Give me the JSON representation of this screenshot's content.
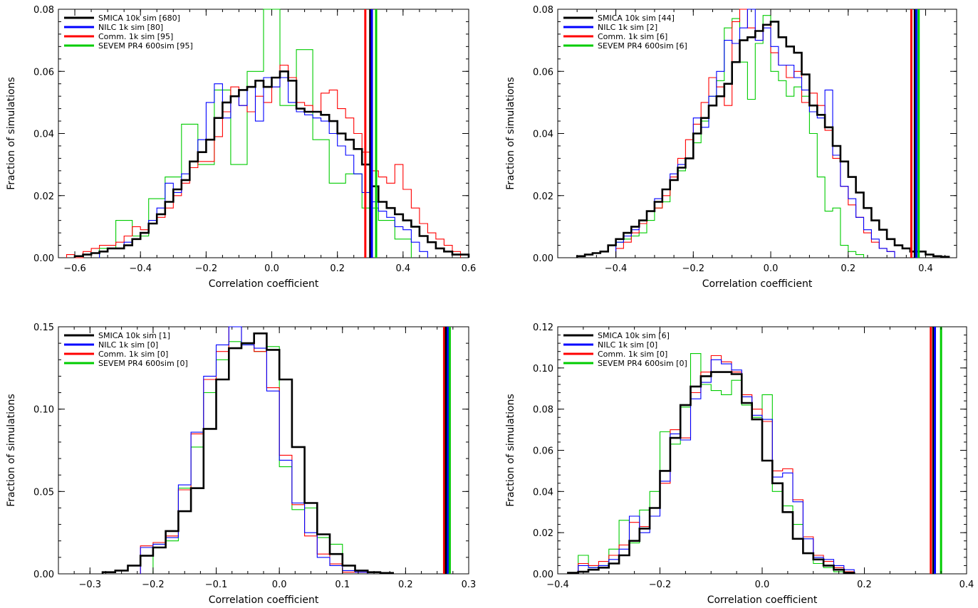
{
  "figure": {
    "colors": {
      "smica": "#000000",
      "nilc": "#0000ff",
      "comm": "#ff0000",
      "sevem": "#00cc00"
    }
  },
  "chart_data": [
    {
      "type": "histogram",
      "xlabel": "Correlation coefficient",
      "ylabel": "Fraction of simulations",
      "xlim": [
        -0.65,
        0.6
      ],
      "ylim": [
        0,
        0.08
      ],
      "xticks": [
        -0.6,
        -0.4,
        -0.2,
        0.0,
        0.2,
        0.4,
        0.6
      ],
      "xtick_labels": [
        "−0.6",
        "−0.4",
        "−0.2",
        "0.0",
        "0.2",
        "0.4",
        "0.6"
      ],
      "yticks": [
        0,
        0.02,
        0.04,
        0.06,
        0.08
      ],
      "ytick_labels": [
        "0.00",
        "0.02",
        "0.04",
        "0.06",
        "0.08"
      ],
      "legend_position": "top-left",
      "series": [
        {
          "key": "smica",
          "name": "SMICA 10k sim [680]",
          "bin_start": -0.6,
          "bin_width": 0.025,
          "values": [
            0.0005,
            0.001,
            0.0015,
            0.002,
            0.003,
            0.003,
            0.004,
            0.006,
            0.008,
            0.011,
            0.014,
            0.018,
            0.022,
            0.025,
            0.031,
            0.034,
            0.038,
            0.045,
            0.05,
            0.052,
            0.054,
            0.055,
            0.057,
            0.055,
            0.058,
            0.06,
            0.057,
            0.048,
            0.047,
            0.047,
            0.046,
            0.044,
            0.04,
            0.038,
            0.035,
            0.03,
            0.023,
            0.018,
            0.016,
            0.014,
            0.012,
            0.01,
            0.007,
            0.005,
            0.003,
            0.002,
            0.001,
            0.001
          ]
        },
        {
          "key": "nilc",
          "name": "NILC 1k sim [80]",
          "bin_start": -0.525,
          "bin_width": 0.025,
          "values": [
            0.002,
            0.003,
            0.003,
            0.005,
            0.006,
            0.008,
            0.012,
            0.016,
            0.024,
            0.021,
            0.027,
            0.031,
            0.038,
            0.05,
            0.056,
            0.045,
            0.052,
            0.049,
            0.055,
            0.044,
            0.058,
            0.055,
            0.058,
            0.05,
            0.047,
            0.046,
            0.045,
            0.044,
            0.04,
            0.036,
            0.033,
            0.027,
            0.021,
            0.018,
            0.015,
            0.013,
            0.01,
            0.009,
            0.005,
            0.002
          ]
        },
        {
          "key": "comm",
          "name": "Comm. 1k sim [95]",
          "bin_start": -0.625,
          "bin_width": 0.025,
          "values": [
            0.001,
            0.0,
            0.002,
            0.003,
            0.004,
            0.004,
            0.005,
            0.007,
            0.01,
            0.009,
            0.011,
            0.013,
            0.016,
            0.02,
            0.024,
            0.029,
            0.031,
            0.031,
            0.039,
            0.047,
            0.055,
            0.049,
            0.047,
            0.052,
            0.05,
            0.055,
            0.062,
            0.058,
            0.05,
            0.049,
            0.047,
            0.053,
            0.054,
            0.048,
            0.045,
            0.04,
            0.034,
            0.028,
            0.026,
            0.024,
            0.03,
            0.022,
            0.016,
            0.011,
            0.008,
            0.006,
            0.004,
            0.002
          ]
        },
        {
          "key": "sevem",
          "name": "SEVEM PR4 600sim [95]",
          "bin_start": -0.525,
          "bin_width": 0.05,
          "values": [
            0.003,
            0.012,
            0.007,
            0.019,
            0.026,
            0.043,
            0.03,
            0.054,
            0.03,
            0.06,
            0.082,
            0.049,
            0.067,
            0.038,
            0.024,
            0.027,
            0.016,
            0.012,
            0.006
          ]
        }
      ],
      "vlines": [
        {
          "key": "comm",
          "x": 0.285
        },
        {
          "key": "smica",
          "x": 0.3
        },
        {
          "key": "nilc",
          "x": 0.305
        },
        {
          "key": "sevem",
          "x": 0.318
        }
      ]
    },
    {
      "type": "histogram",
      "xlabel": "Correlation coefficient",
      "ylabel": "Fraction of simulations",
      "xlim": [
        -0.55,
        0.48
      ],
      "ylim": [
        0,
        0.08
      ],
      "xticks": [
        -0.4,
        -0.2,
        0.0,
        0.2,
        0.4
      ],
      "xtick_labels": [
        "−0.4",
        "−0.2",
        "0.0",
        "0.2",
        "0.4"
      ],
      "yticks": [
        0,
        0.02,
        0.04,
        0.06,
        0.08
      ],
      "ytick_labels": [
        "0.00",
        "0.02",
        "0.04",
        "0.06",
        "0.08"
      ],
      "legend_position": "top-left",
      "series": [
        {
          "key": "smica",
          "name": "SMICA 10k sim [44]",
          "bin_start": -0.5,
          "bin_width": 0.02,
          "values": [
            0.0005,
            0.001,
            0.0015,
            0.002,
            0.004,
            0.006,
            0.008,
            0.01,
            0.012,
            0.015,
            0.018,
            0.022,
            0.025,
            0.029,
            0.032,
            0.04,
            0.045,
            0.049,
            0.052,
            0.056,
            0.063,
            0.07,
            0.071,
            0.073,
            0.075,
            0.076,
            0.071,
            0.068,
            0.066,
            0.059,
            0.049,
            0.046,
            0.042,
            0.036,
            0.031,
            0.026,
            0.021,
            0.016,
            0.012,
            0.009,
            0.006,
            0.004,
            0.003,
            0.002,
            0.002,
            0.001,
            0.0005,
            0.0003
          ]
        },
        {
          "key": "nilc",
          "name": "NILC 1k sim [2]",
          "bin_start": -0.4,
          "bin_width": 0.02,
          "values": [
            0.005,
            0.007,
            0.009,
            0.012,
            0.015,
            0.019,
            0.022,
            0.027,
            0.03,
            0.032,
            0.045,
            0.042,
            0.052,
            0.06,
            0.07,
            0.069,
            0.074,
            0.08,
            0.07,
            0.074,
            0.068,
            0.062,
            0.062,
            0.058,
            0.054,
            0.047,
            0.045,
            0.054,
            0.033,
            0.023,
            0.019,
            0.013,
            0.009,
            0.006,
            0.003,
            0.002
          ]
        },
        {
          "key": "comm",
          "name": "Comm. 1k sim [6]",
          "bin_start": -0.4,
          "bin_width": 0.02,
          "values": [
            0.003,
            0.005,
            0.008,
            0.011,
            0.015,
            0.016,
            0.02,
            0.026,
            0.032,
            0.038,
            0.043,
            0.05,
            0.058,
            0.055,
            0.049,
            0.076,
            0.081,
            0.074,
            0.07,
            0.075,
            0.066,
            0.062,
            0.058,
            0.06,
            0.05,
            0.053,
            0.049,
            0.041,
            0.032,
            0.023,
            0.017,
            0.013,
            0.008,
            0.005,
            0.003,
            0.002
          ]
        },
        {
          "key": "sevem",
          "name": "SEVEM PR4 600sim [6]",
          "bin_start": -0.4,
          "bin_width": 0.02,
          "values": [
            0.005,
            0.006,
            0.007,
            0.008,
            0.012,
            0.016,
            0.018,
            0.025,
            0.028,
            0.032,
            0.037,
            0.044,
            0.052,
            0.057,
            0.074,
            0.077,
            0.063,
            0.051,
            0.069,
            0.078,
            0.06,
            0.057,
            0.052,
            0.055,
            0.052,
            0.04,
            0.026,
            0.015,
            0.016,
            0.004,
            0.002,
            0.001
          ]
        }
      ],
      "vlines": [
        {
          "key": "comm",
          "x": 0.363
        },
        {
          "key": "smica",
          "x": 0.372
        },
        {
          "key": "nilc",
          "x": 0.376
        },
        {
          "key": "sevem",
          "x": 0.382
        }
      ]
    },
    {
      "type": "histogram",
      "xlabel": "Correlation coefficient",
      "ylabel": "Fraction of simulations",
      "xlim": [
        -0.35,
        0.3
      ],
      "ylim": [
        0,
        0.15
      ],
      "xticks": [
        -0.3,
        -0.2,
        -0.1,
        0.0,
        0.1,
        0.2,
        0.3
      ],
      "xtick_labels": [
        "−0.3",
        "−0.2",
        "−0.1",
        "0.0",
        "0.1",
        "0.2",
        "0.3"
      ],
      "yticks": [
        0,
        0.05,
        0.1,
        0.15
      ],
      "ytick_labels": [
        "0.00",
        "0.05",
        "0.10",
        "0.15"
      ],
      "legend_position": "top-left",
      "series": [
        {
          "key": "smica",
          "name": "SMICA 10k sim [1]",
          "bin_start": -0.28,
          "bin_width": 0.02,
          "values": [
            0.001,
            0.002,
            0.005,
            0.011,
            0.016,
            0.026,
            0.038,
            0.052,
            0.088,
            0.118,
            0.137,
            0.14,
            0.146,
            0.136,
            0.118,
            0.077,
            0.043,
            0.024,
            0.012,
            0.005,
            0.002,
            0.001,
            0.0005
          ]
        },
        {
          "key": "nilc",
          "name": "NILC 1k sim [0]",
          "bin_start": -0.22,
          "bin_width": 0.02,
          "values": [
            0.016,
            0.018,
            0.022,
            0.054,
            0.086,
            0.12,
            0.139,
            0.15,
            0.139,
            0.137,
            0.111,
            0.069,
            0.043,
            0.025,
            0.01,
            0.005,
            0.002,
            0.001
          ]
        },
        {
          "key": "comm",
          "name": "Comm. 1k sim [0]",
          "bin_start": -0.22,
          "bin_width": 0.02,
          "values": [
            0.017,
            0.019,
            0.023,
            0.051,
            0.085,
            0.118,
            0.135,
            0.151,
            0.14,
            0.135,
            0.113,
            0.072,
            0.042,
            0.023,
            0.012,
            0.006,
            0.001,
            0.001
          ]
        },
        {
          "key": "sevem",
          "name": "SEVEM PR4 600sim [0]",
          "bin_start": -0.2,
          "bin_width": 0.02,
          "values": [
            0.018,
            0.02,
            0.052,
            0.077,
            0.11,
            0.13,
            0.141,
            0.139,
            0.135,
            0.138,
            0.065,
            0.039,
            0.04,
            0.022,
            0.018,
            0.005,
            0.002
          ]
        }
      ],
      "vlines": [
        {
          "key": "comm",
          "x": 0.261
        },
        {
          "key": "smica",
          "x": 0.264
        },
        {
          "key": "nilc",
          "x": 0.267
        },
        {
          "key": "sevem",
          "x": 0.27
        }
      ]
    },
    {
      "type": "histogram",
      "xlabel": "Correlation coefficient",
      "ylabel": "Fraction of simulations",
      "xlim": [
        -0.4,
        0.4
      ],
      "ylim": [
        0,
        0.12
      ],
      "xticks": [
        -0.4,
        -0.2,
        0.0,
        0.2,
        0.4
      ],
      "xtick_labels": [
        "−0.4",
        "−0.2",
        "0.0",
        "0.2",
        "0.4"
      ],
      "yticks": [
        0,
        0.02,
        0.04,
        0.06,
        0.08,
        0.1,
        0.12
      ],
      "ytick_labels": [
        "0.00",
        "0.02",
        "0.04",
        "0.06",
        "0.08",
        "0.10",
        "0.12"
      ],
      "legend_position": "top-left",
      "series": [
        {
          "key": "smica",
          "name": "SMICA 10k sim [6]",
          "bin_start": -0.38,
          "bin_width": 0.02,
          "values": [
            0.0005,
            0.001,
            0.002,
            0.003,
            0.005,
            0.009,
            0.016,
            0.022,
            0.032,
            0.05,
            0.066,
            0.082,
            0.091,
            0.096,
            0.098,
            0.098,
            0.097,
            0.083,
            0.075,
            0.055,
            0.044,
            0.03,
            0.017,
            0.01,
            0.007,
            0.004,
            0.002,
            0.0005
          ]
        },
        {
          "key": "nilc",
          "name": "NILC 1k sim [0]",
          "bin_start": -0.36,
          "bin_width": 0.02,
          "values": [
            0.004,
            0.003,
            0.004,
            0.007,
            0.012,
            0.028,
            0.02,
            0.028,
            0.045,
            0.068,
            0.065,
            0.085,
            0.093,
            0.104,
            0.102,
            0.099,
            0.086,
            0.077,
            0.075,
            0.047,
            0.049,
            0.035,
            0.017,
            0.008,
            0.007,
            0.004,
            0.002
          ]
        },
        {
          "key": "comm",
          "name": "Comm. 1k sim [0]",
          "bin_start": -0.36,
          "bin_width": 0.02,
          "values": [
            0.005,
            0.004,
            0.006,
            0.009,
            0.014,
            0.025,
            0.023,
            0.032,
            0.044,
            0.07,
            0.066,
            0.088,
            0.098,
            0.106,
            0.103,
            0.098,
            0.087,
            0.08,
            0.074,
            0.05,
            0.051,
            0.036,
            0.018,
            0.009,
            0.006,
            0.003,
            0.001
          ]
        },
        {
          "key": "sevem",
          "name": "SEVEM PR4 600sim [0]",
          "bin_start": -0.36,
          "bin_width": 0.02,
          "values": [
            0.009,
            0.003,
            0.004,
            0.012,
            0.026,
            0.015,
            0.031,
            0.04,
            0.069,
            0.063,
            0.081,
            0.107,
            0.092,
            0.089,
            0.087,
            0.094,
            0.082,
            0.076,
            0.087,
            0.04,
            0.033,
            0.024,
            0.01,
            0.005,
            0.003,
            0.001,
            0.001
          ]
        }
      ],
      "vlines": [
        {
          "key": "comm",
          "x": 0.33
        },
        {
          "key": "smica",
          "x": 0.335
        },
        {
          "key": "nilc",
          "x": 0.338
        },
        {
          "key": "sevem",
          "x": 0.35
        }
      ]
    }
  ]
}
